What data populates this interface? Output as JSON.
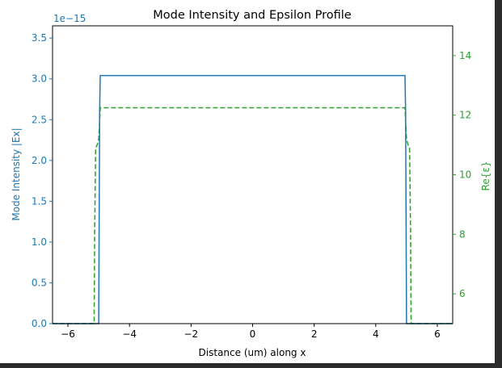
{
  "chart_data": {
    "type": "line",
    "title": "Mode Intensity and Epsilon Profile",
    "xlabel": "Distance (um) along x",
    "ylabel_left": "Mode Intensity |Ex|",
    "ylabel_right": "Re{ε}",
    "left_axis_offset_text": "1e−15",
    "xlim": [
      -6.5,
      6.5
    ],
    "ylim_left": [
      0,
      3.65
    ],
    "ylim_right": [
      5.0,
      15.0
    ],
    "x_ticks": [
      -6,
      -4,
      -2,
      0,
      2,
      4,
      6
    ],
    "x_tick_labels": [
      "−6",
      "−4",
      "−2",
      "0",
      "2",
      "4",
      "6"
    ],
    "left_ticks": [
      0.0,
      0.5,
      1.0,
      1.5,
      2.0,
      2.5,
      3.0,
      3.5
    ],
    "left_tick_labels": [
      "0.0",
      "0.5",
      "1.0",
      "1.5",
      "2.0",
      "2.5",
      "3.0",
      "3.5"
    ],
    "right_ticks": [
      6,
      8,
      10,
      12,
      14
    ],
    "right_tick_labels": [
      "6",
      "8",
      "10",
      "12",
      "14"
    ],
    "colors": {
      "intensity": "#1f77b4",
      "epsilon": "#2ca02c",
      "axis": "#000000"
    },
    "series": [
      {
        "axis": "left",
        "style": "solid",
        "x": [
          -6.5,
          -5.0,
          -4.97,
          -4.95,
          4.95,
          4.97,
          5.0,
          6.5
        ],
        "y": [
          0.0,
          0.0,
          2.6,
          3.04,
          3.04,
          2.6,
          0.0,
          0.0
        ]
      },
      {
        "axis": "right",
        "style": "dashed",
        "x": [
          -6.5,
          -5.15,
          -5.13,
          -5.1,
          -5.05,
          -5.0,
          -4.97,
          -4.95,
          4.95,
          4.97,
          5.0,
          5.05,
          5.1,
          5.13,
          5.15,
          6.5
        ],
        "y": [
          5.0,
          5.0,
          8.2,
          10.9,
          11.0,
          11.2,
          11.8,
          12.25,
          12.25,
          11.8,
          11.2,
          11.0,
          10.9,
          8.2,
          5.0,
          5.0
        ]
      }
    ]
  }
}
